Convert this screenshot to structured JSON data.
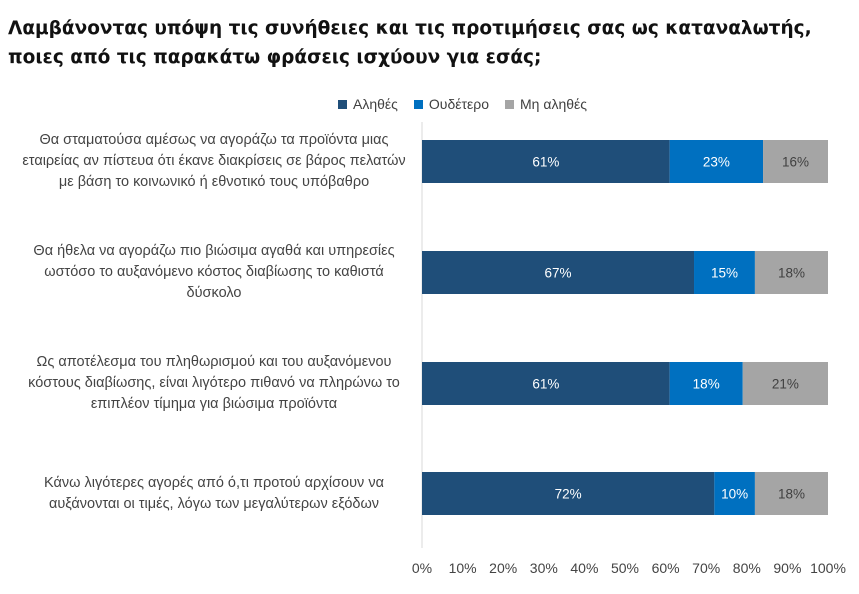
{
  "title": {
    "line1": "Λαμβάνοντας υπόψη τις συνήθειες και τις προτιμήσεις σας ως καταναλωτής,",
    "line2": "ποιες από τις παρακάτω φράσεις ισχύουν για εσάς;"
  },
  "chart_data": {
    "type": "bar",
    "orientation": "horizontal",
    "stacked": true,
    "categories": [
      [
        "Θα σταματούσα αμέσως να αγοράζω τα προϊόντα μιας",
        "εταιρείας αν πίστευα ότι έκανε διακρίσεις σε βάρος πελατών",
        "με βάση το κοινωνικό ή εθνοτικό τους υπόβαθρο"
      ],
      [
        "Θα ήθελα να αγοράζω πιο βιώσιμα αγαθά και υπηρεσίες",
        "ωστόσο το αυξανόμενο κόστος διαβίωσης το καθιστά",
        "δύσκολο"
      ],
      [
        "Ως αποτέλεσμα του πληθωρισμού και του αυξανόμενου",
        "κόστους διαβίωσης, είναι λιγότερο πιθανό να πληρώνω το",
        "επιπλέον τίμημα για βιώσιμα προϊόντα"
      ],
      [
        "Κάνω λιγότερες αγορές από ό,τι προτού αρχίσουν να",
        "αυξάνονται οι τιμές, λόγω των μεγαλύτερων εξόδων"
      ]
    ],
    "series": [
      {
        "name": "Αληθές",
        "color": "#1f4e79",
        "label_color": "#ffffff",
        "values": [
          61,
          67,
          61,
          72
        ],
        "labels": [
          "61%",
          "67%",
          "61%",
          "72%"
        ]
      },
      {
        "name": "Ουδέτερο",
        "color": "#0070c0",
        "label_color": "#ffffff",
        "values": [
          23,
          15,
          18,
          10
        ],
        "labels": [
          "23%",
          "15%",
          "18%",
          "10%"
        ]
      },
      {
        "name": "Μη αληθές",
        "color": "#a5a5a5",
        "label_color": "#404040",
        "values": [
          16,
          18,
          21,
          18
        ],
        "labels": [
          "16%",
          "18%",
          "21%",
          "18%"
        ]
      }
    ],
    "xlim": [
      0,
      100
    ],
    "xticks": [
      "0%",
      "10%",
      "20%",
      "30%",
      "40%",
      "50%",
      "60%",
      "70%",
      "80%",
      "90%",
      "100%"
    ],
    "legend_position": "top",
    "grid": false
  }
}
